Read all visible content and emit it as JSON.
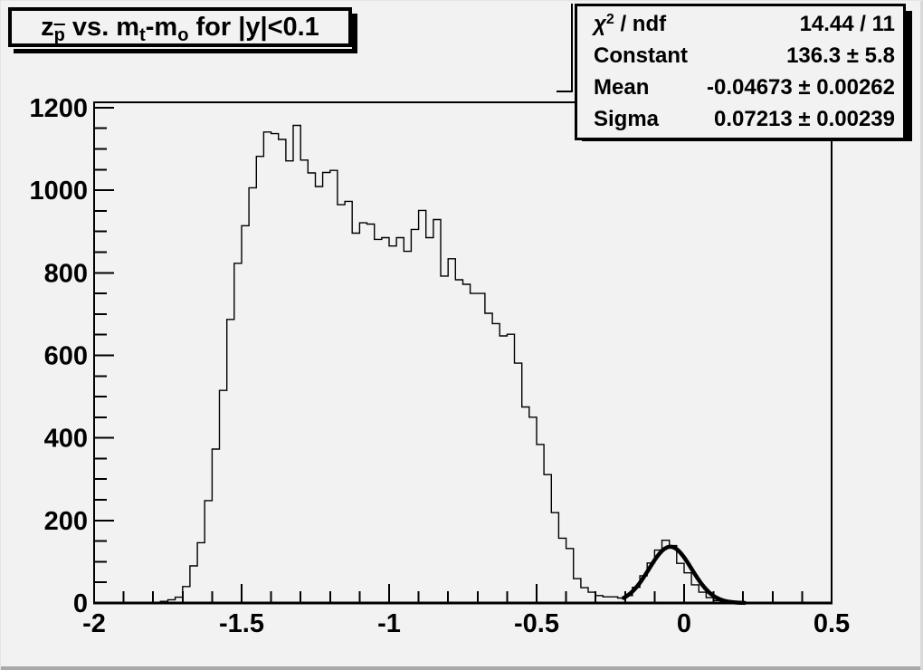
{
  "title": {
    "z": "z",
    "p_sub": "p",
    "vs_m": " vs. m",
    "t_sub": "t",
    "minus_m": "-m",
    "o_sub": "o",
    "rest": " for |y|<0.1"
  },
  "stats": {
    "chi": {
      "base": "χ",
      "sup": "2",
      "rest": " / ndf"
    },
    "rows": [
      {
        "label": "",
        "value": "14.44 / 11"
      },
      {
        "label": "Constant",
        "value": "136.3 ± 5.8"
      },
      {
        "label": "Mean",
        "value": "-0.04673 ± 0.00262"
      },
      {
        "label": "Sigma",
        "value": "0.07213 ± 0.00239"
      }
    ]
  },
  "chart_data": {
    "type": "bar",
    "subtype": "step-histogram",
    "title": "z_p vs. m_t-m_o for |y|<0.1",
    "xlabel": "",
    "ylabel": "",
    "xlim": [
      -2,
      0.5
    ],
    "ylim": [
      0,
      1213
    ],
    "grid": false,
    "legend": false,
    "bin_start": -2,
    "bin_width": 0.025,
    "values": [
      0,
      0,
      0,
      0,
      0,
      0,
      0,
      0,
      0,
      4,
      8,
      14,
      40,
      90,
      146,
      248,
      373,
      515,
      687,
      823,
      914,
      1006,
      1082,
      1141,
      1137,
      1123,
      1071,
      1157,
      1073,
      1042,
      1009,
      1043,
      1048,
      965,
      973,
      896,
      921,
      918,
      881,
      885,
      865,
      885,
      852,
      905,
      951,
      885,
      929,
      792,
      834,
      783,
      772,
      750,
      750,
      702,
      677,
      647,
      651,
      581,
      475,
      450,
      384,
      311,
      219,
      157,
      132,
      59,
      37,
      26,
      18,
      15,
      15,
      12,
      18,
      38,
      66,
      97,
      128,
      152,
      139,
      96,
      73,
      44,
      26,
      13,
      6,
      3,
      1,
      0,
      0,
      0,
      0,
      0,
      0,
      0,
      0,
      0,
      0,
      0,
      0,
      0
    ],
    "x_major_ticks": [
      -2,
      -1.5,
      -1,
      -0.5,
      0,
      0.5
    ],
    "x_tick_labels": [
      "-2",
      "-1.5",
      "-1",
      "-0.5",
      "0",
      "0.5"
    ],
    "x_minor_step": 0.1,
    "y_major_ticks": [
      0,
      200,
      400,
      600,
      800,
      1000,
      1200
    ],
    "y_tick_labels": [
      "0",
      "200",
      "400",
      "600",
      "800",
      "1000",
      "1200"
    ],
    "y_minor_step": 50,
    "line_color": "#000000",
    "fit_curve": {
      "type": "gaussian",
      "constant": 136.3,
      "mean": -0.04673,
      "sigma": 0.07213,
      "range": [
        -0.205,
        0.205
      ],
      "color": "#000000"
    }
  }
}
